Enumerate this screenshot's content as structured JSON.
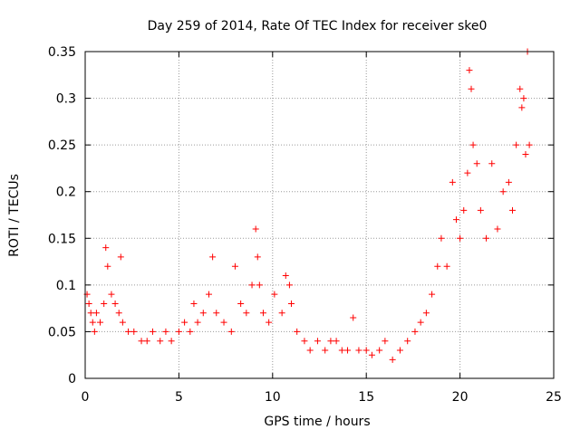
{
  "chart_data": {
    "type": "scatter",
    "title": "Day 259 of 2014, Rate Of TEC Index for receiver ske0",
    "xlabel": "GPS time / hours",
    "ylabel": "ROTI / TECUs",
    "xlim": [
      0,
      25
    ],
    "ylim": [
      0,
      0.35
    ],
    "x_ticks": [
      0,
      5,
      10,
      15,
      20,
      25
    ],
    "y_ticks": [
      0,
      0.05,
      0.1,
      0.15,
      0.2,
      0.25,
      0.3,
      0.35
    ],
    "x_tick_labels": [
      "0",
      "5",
      "10",
      "15",
      "20",
      "25"
    ],
    "y_tick_labels": [
      "0",
      "0.05",
      "0.1",
      "0.15",
      "0.2",
      "0.25",
      "0.3",
      "0.35"
    ],
    "grid": true,
    "legend": "none",
    "marker": "plus",
    "color": "#ff0000",
    "series": [
      {
        "x": [
          0.1,
          0.2,
          0.3,
          0.4,
          0.5,
          0.6,
          0.8,
          1.0,
          1.1,
          1.2,
          1.4,
          1.6,
          1.8,
          1.9,
          2.0,
          2.3,
          2.6,
          3.0,
          3.3,
          3.6,
          4.0,
          4.3,
          4.6,
          5.0,
          5.3,
          5.6,
          5.8,
          6.0,
          6.3,
          6.6,
          6.8,
          7.0,
          7.4,
          7.8,
          8.0,
          8.3,
          8.6,
          8.9,
          9.1,
          9.2,
          9.3,
          9.5,
          9.8,
          10.1,
          10.5,
          10.7,
          10.9,
          11.0,
          11.3,
          11.7,
          12.0,
          12.4,
          12.8,
          13.1,
          13.4,
          13.7,
          14.0,
          14.3,
          14.6,
          15.0,
          15.3,
          15.7,
          16.0,
          16.4,
          16.8,
          17.2,
          17.6,
          17.9,
          18.2,
          18.5,
          18.8,
          19.0,
          19.3,
          19.6,
          19.8,
          20.0,
          20.2,
          20.4,
          20.5,
          20.6,
          20.7,
          20.9,
          21.1,
          21.4,
          21.7,
          22.0,
          22.3,
          22.6,
          22.8,
          23.0,
          23.2,
          23.3,
          23.4,
          23.5,
          23.6,
          23.7
        ],
        "y": [
          0.09,
          0.08,
          0.07,
          0.06,
          0.05,
          0.07,
          0.06,
          0.08,
          0.14,
          0.12,
          0.09,
          0.08,
          0.07,
          0.13,
          0.06,
          0.05,
          0.05,
          0.04,
          0.04,
          0.05,
          0.04,
          0.05,
          0.04,
          0.05,
          0.06,
          0.05,
          0.08,
          0.06,
          0.07,
          0.09,
          0.13,
          0.07,
          0.06,
          0.05,
          0.12,
          0.08,
          0.07,
          0.1,
          0.16,
          0.13,
          0.1,
          0.07,
          0.06,
          0.09,
          0.07,
          0.11,
          0.1,
          0.08,
          0.05,
          0.04,
          0.03,
          0.04,
          0.03,
          0.04,
          0.04,
          0.03,
          0.03,
          0.065,
          0.03,
          0.03,
          0.025,
          0.03,
          0.04,
          0.02,
          0.03,
          0.04,
          0.05,
          0.06,
          0.07,
          0.09,
          0.12,
          0.15,
          0.12,
          0.21,
          0.17,
          0.15,
          0.18,
          0.22,
          0.33,
          0.31,
          0.25,
          0.23,
          0.18,
          0.15,
          0.23,
          0.16,
          0.2,
          0.21,
          0.18,
          0.25,
          0.31,
          0.29,
          0.3,
          0.24,
          0.35,
          0.25
        ]
      }
    ]
  }
}
